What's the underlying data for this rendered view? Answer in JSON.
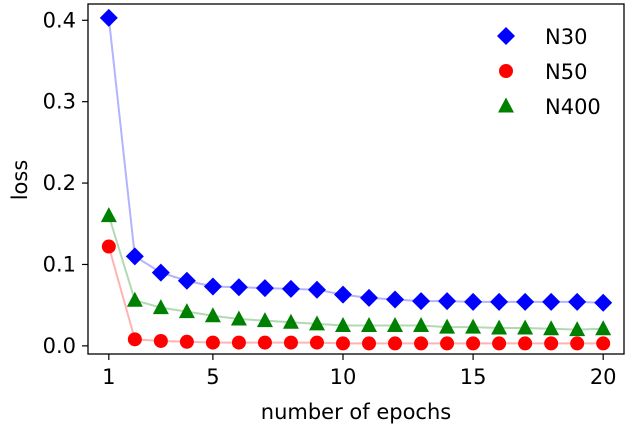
{
  "chart_data": {
    "type": "line",
    "title": "",
    "xlabel": "number of epochs",
    "ylabel": "loss",
    "xlim": [
      0.2,
      20.8
    ],
    "ylim": [
      -0.01,
      0.42
    ],
    "xticks": [
      1,
      5,
      10,
      15,
      20
    ],
    "yticks": [
      0.0,
      0.1,
      0.2,
      0.3,
      0.4
    ],
    "xtick_labels": [
      "1",
      "5",
      "10",
      "15",
      "20"
    ],
    "ytick_labels": [
      "0.0",
      "0.1",
      "0.2",
      "0.3",
      "0.4"
    ],
    "grid": false,
    "legend_position": "top-right",
    "x": [
      1,
      2,
      3,
      4,
      5,
      6,
      7,
      8,
      9,
      10,
      11,
      12,
      13,
      14,
      15,
      16,
      17,
      18,
      19,
      20
    ],
    "series": [
      {
        "name": "N30",
        "marker": "diamond",
        "color": "#0000ff",
        "line_color": "#b3b3ff",
        "values": [
          0.403,
          0.11,
          0.09,
          0.08,
          0.073,
          0.072,
          0.071,
          0.07,
          0.069,
          0.063,
          0.059,
          0.057,
          0.055,
          0.055,
          0.054,
          0.054,
          0.054,
          0.054,
          0.054,
          0.053
        ]
      },
      {
        "name": "N50",
        "marker": "circle",
        "color": "#ff0000",
        "line_color": "#ffb3b3",
        "values": [
          0.122,
          0.008,
          0.006,
          0.005,
          0.004,
          0.004,
          0.004,
          0.004,
          0.004,
          0.003,
          0.003,
          0.003,
          0.003,
          0.003,
          0.003,
          0.003,
          0.003,
          0.003,
          0.003,
          0.003
        ]
      },
      {
        "name": "N400",
        "marker": "triangle",
        "color": "#008000",
        "line_color": "#b3d9b3",
        "values": [
          0.16,
          0.056,
          0.047,
          0.042,
          0.037,
          0.033,
          0.031,
          0.029,
          0.027,
          0.025,
          0.025,
          0.025,
          0.025,
          0.023,
          0.023,
          0.022,
          0.022,
          0.021,
          0.02,
          0.021
        ]
      }
    ]
  }
}
